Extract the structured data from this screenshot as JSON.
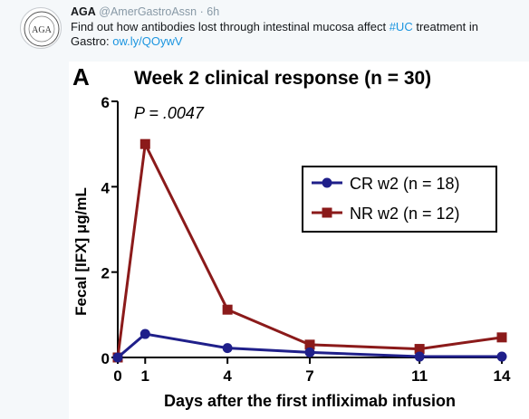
{
  "tweet": {
    "author_name": "AGA",
    "author_handle": "@AmerGastroAssn",
    "separator": "·",
    "time": "6h",
    "text_1": "Find out how antibodies lost through intestinal mucosa affect ",
    "hashtag": "#UC",
    "text_2": " treatment in Gastro: ",
    "link": "ow.ly/QOywV",
    "avatar_text": "AGA"
  },
  "chart_data": {
    "type": "line",
    "panel_label": "A",
    "title": "Week 2 clinical response (n = 30)",
    "annotation": "P = .0047",
    "xlabel": "Days after the first infliximab infusion",
    "ylabel": "Fecal [IFX] μg/mL",
    "x_ticks": [
      0,
      1,
      4,
      7,
      11,
      14
    ],
    "y_ticks": [
      0,
      2,
      4,
      6
    ],
    "xlim": [
      0,
      14
    ],
    "ylim": [
      0,
      6
    ],
    "legend_position": "right",
    "series": [
      {
        "name": "CR w2 (n = 18)",
        "color": "#1f1f8a",
        "marker": "circle",
        "x": [
          0,
          1,
          4,
          7,
          11,
          14
        ],
        "values": [
          0,
          0.55,
          0.22,
          0.12,
          0.02,
          0.02
        ]
      },
      {
        "name": "NR w2 (n = 12)",
        "color": "#8b1a1a",
        "marker": "square",
        "x": [
          0,
          1,
          4,
          7,
          11,
          14
        ],
        "values": [
          0,
          5.0,
          1.12,
          0.3,
          0.2,
          0.47
        ]
      }
    ]
  }
}
